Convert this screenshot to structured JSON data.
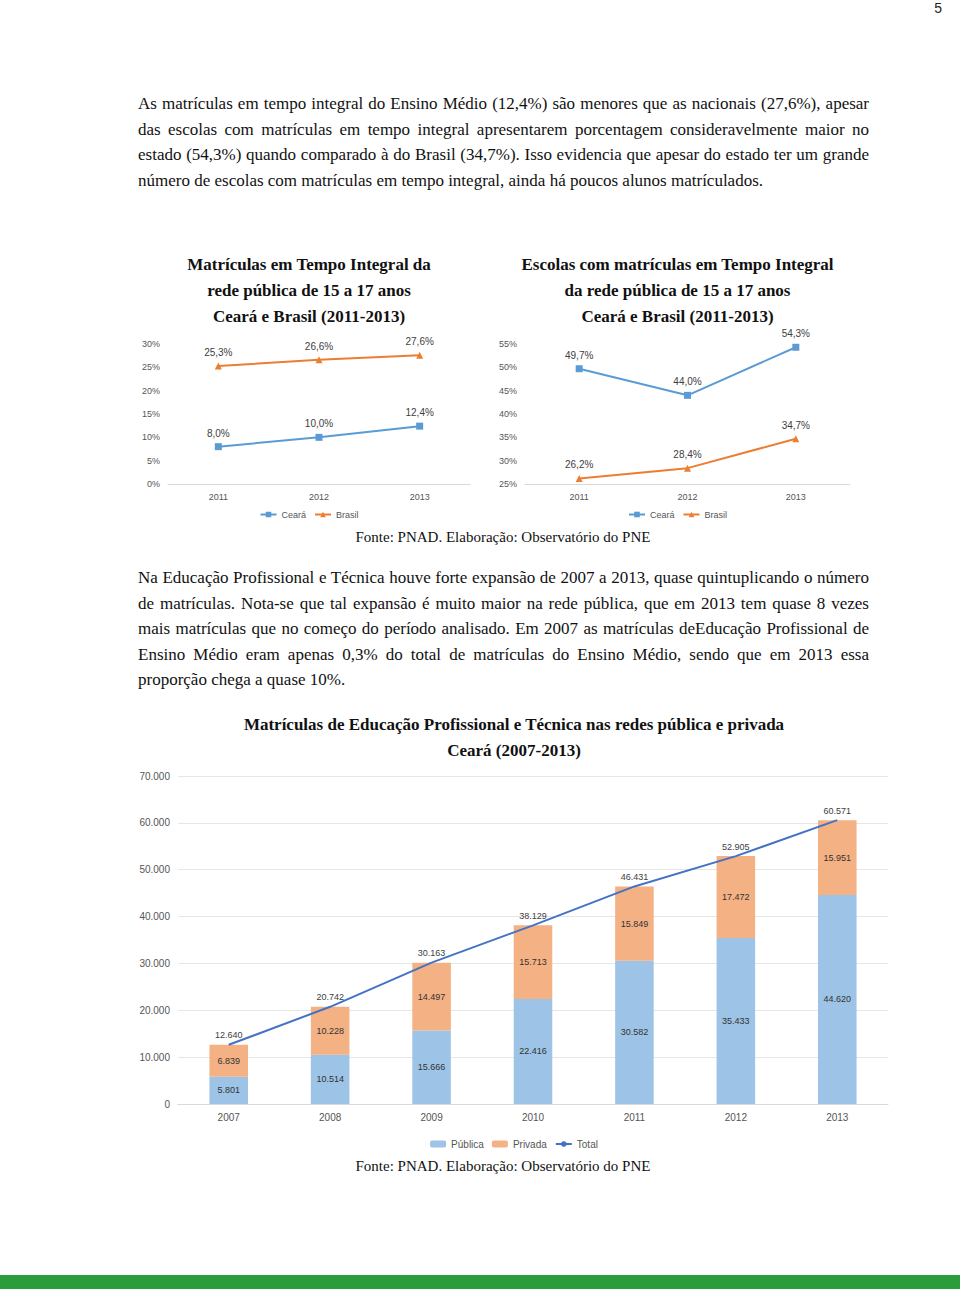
{
  "document": {
    "page_number": "5",
    "paragraphs": [
      "As matrículas em tempo integral do Ensino Médio (12,4%) são menores que as nacionais (27,6%), apesar das escolas com matrículas em tempo integral apresentarem porcentagem consideravelmente maior no estado (54,3%) quando comparado à do Brasil (34,7%). Isso evidencia que apesar do estado ter um grande número de escolas com matrículas em tempo integral, ainda há poucos alunos matrículados.",
      "Na Educação Profissional e Técnica houve forte expansão de 2007 a 2013, quase quintuplicando o número de matrículas. Nota-se que tal expansão é muito maior na rede pública, que em 2013 tem quase 8 vezes mais matrículas que no começo do período analisado. Em 2007 as matrículas deEducação Profissional de Ensino Médio eram apenas 0,3% do total de matrículas do Ensino Médio, sendo que em 2013 essa proporção chega a quase 10%."
    ],
    "sources": [
      "Fonte: PNAD. Elaboração: Observatório do PNE",
      "Fonte: PNAD. Elaboração: Observatório do PNE"
    ]
  },
  "chart_data": [
    {
      "type": "line",
      "title": "Matrículas em Tempo Integral da\nrede pública de 15 a 17 anos\nCeará e Brasil (2011-2013)",
      "categories": [
        "2011",
        "2012",
        "2013"
      ],
      "series": [
        {
          "name": "Ceará",
          "color": "#5b9bd5",
          "marker": "square",
          "values": [
            8.0,
            10.0,
            12.4
          ],
          "value_labels": [
            "8,0%",
            "10,0%",
            "12,4%"
          ]
        },
        {
          "name": "Brasil",
          "color": "#ed7d31",
          "marker": "triangle",
          "values": [
            25.3,
            26.6,
            27.6
          ],
          "value_labels": [
            "25,3%",
            "26,6%",
            "27,6%"
          ]
        }
      ],
      "ylim": [
        0,
        30
      ],
      "yticks": [
        {
          "value": 0,
          "label": "0%"
        },
        {
          "value": 5,
          "label": "5%"
        },
        {
          "value": 10,
          "label": "10%"
        },
        {
          "value": 15,
          "label": "15%"
        },
        {
          "value": 20,
          "label": "20%"
        },
        {
          "value": 25,
          "label": "25%"
        },
        {
          "value": 30,
          "label": "30%"
        }
      ],
      "grid": false,
      "legend": "bottom",
      "data_labels": true
    },
    {
      "type": "line",
      "title": "Escolas com matrículas em Tempo Integral\nda rede pública de 15 a 17 anos\nCeará e Brasil (2011-2013)",
      "categories": [
        "2011",
        "2012",
        "2013"
      ],
      "series": [
        {
          "name": "Ceará",
          "color": "#5b9bd5",
          "marker": "square",
          "values": [
            49.7,
            44.0,
            54.3
          ],
          "value_labels": [
            "49,7%",
            "44,0%",
            "54,3%"
          ]
        },
        {
          "name": "Brasil",
          "color": "#ed7d31",
          "marker": "triangle",
          "values": [
            26.2,
            28.4,
            34.7
          ],
          "value_labels": [
            "26,2%",
            "28,4%",
            "34,7%"
          ]
        }
      ],
      "ylim": [
        25,
        55
      ],
      "yticks": [
        {
          "value": 25,
          "label": "25%"
        },
        {
          "value": 30,
          "label": "30%"
        },
        {
          "value": 35,
          "label": "35%"
        },
        {
          "value": 40,
          "label": "40%"
        },
        {
          "value": 45,
          "label": "45%"
        },
        {
          "value": 50,
          "label": "50%"
        },
        {
          "value": 55,
          "label": "55%"
        }
      ],
      "grid": false,
      "legend": "bottom",
      "data_labels": true
    },
    {
      "type": "bar",
      "title": "Matrículas de Educação Profissional e Técnica nas redes pública e privada\nCeará (2007-2013)",
      "categories": [
        "2007",
        "2008",
        "2009",
        "2010",
        "2011",
        "2012",
        "2013"
      ],
      "series": [
        {
          "name": "Pública",
          "type": "bar",
          "color": "#9dc3e6",
          "values": [
            5801,
            10514,
            15666,
            22416,
            30582,
            35433,
            44620
          ],
          "value_labels": [
            "5.801",
            "10.514",
            "15.666",
            "22.416",
            "30.582",
            "35.433",
            "44.620"
          ]
        },
        {
          "name": "Privada",
          "type": "bar",
          "color": "#f4b183",
          "values": [
            6839,
            10228,
            14497,
            15713,
            15849,
            17472,
            15951
          ],
          "value_labels": [
            "6.839",
            "10.228",
            "14.497",
            "15.713",
            "15.849",
            "17.472",
            "15.951"
          ]
        },
        {
          "name": "Total",
          "type": "line",
          "color": "#4472c4",
          "marker": "none",
          "values": [
            12640,
            20742,
            30163,
            38129,
            46431,
            52905,
            60571
          ],
          "value_labels": [
            "12.640",
            "20.742",
            "30.163",
            "38.129",
            "46.431",
            "52.905",
            "60.571"
          ]
        }
      ],
      "stacked": true,
      "ylim": [
        0,
        70000
      ],
      "yticks": [
        0,
        {
          "value": 10000,
          "label": "10.000"
        },
        {
          "value": 20000,
          "label": "20.000"
        },
        {
          "value": 30000,
          "label": "30.000"
        },
        {
          "value": 40000,
          "label": "40.000"
        },
        {
          "value": 50000,
          "label": "50.000"
        },
        {
          "value": 60000,
          "label": "60.000"
        },
        {
          "value": 70000,
          "label": "70.000"
        }
      ],
      "grid": true,
      "legend": "bottom",
      "data_labels": true
    }
  ]
}
